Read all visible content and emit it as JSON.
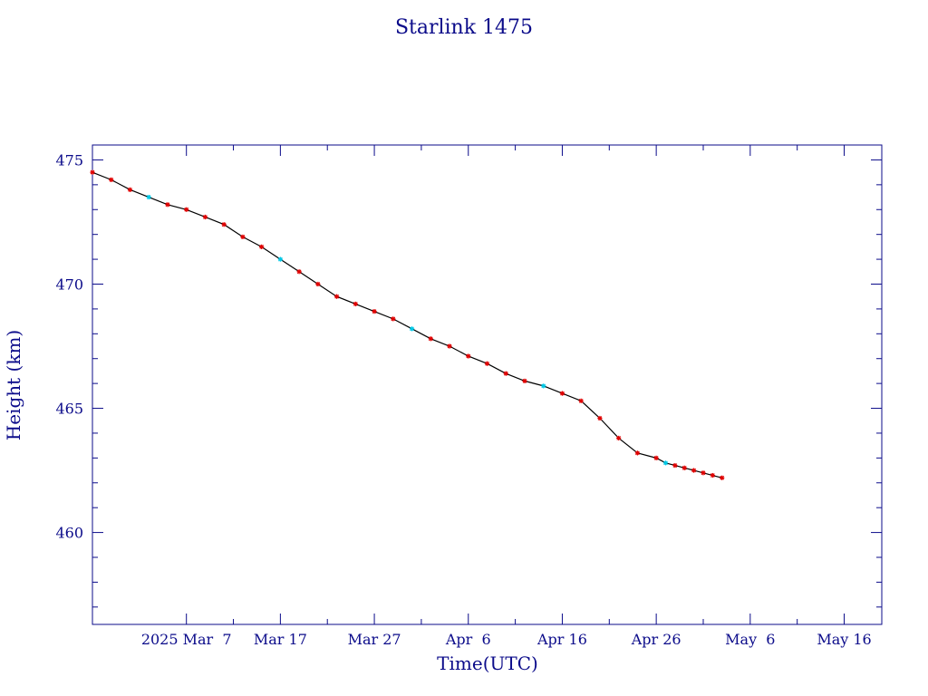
{
  "chart_data": {
    "type": "scatter",
    "title": "Starlink 1475",
    "xlabel": "Time(UTC)",
    "ylabel": "Height (km)",
    "x_tick_labels": [
      "2025 Mar  7",
      "Mar 17",
      "Mar 27",
      "Apr  6",
      "Apr 16",
      "Apr 26",
      "May  6",
      "May 16"
    ],
    "x_tick_dates": [
      "2025-03-07",
      "2025-03-17",
      "2025-03-27",
      "2025-04-06",
      "2025-04-16",
      "2025-04-26",
      "2025-05-06",
      "2025-05-16"
    ],
    "xlim": [
      "2025-02-25",
      "2025-05-20"
    ],
    "y_ticks": [
      460,
      465,
      470,
      475
    ],
    "ylim": [
      456.3,
      475.6
    ],
    "grid": false,
    "colors": {
      "axis": "#0b0b8a",
      "points": "#e00000",
      "points_alt": "#00c8e6",
      "line": "#000000"
    },
    "series": [
      {
        "x": [
          "2025-02-25",
          "2025-02-27",
          "2025-03-01",
          "2025-03-03",
          "2025-03-05",
          "2025-03-07",
          "2025-03-09",
          "2025-03-11",
          "2025-03-13",
          "2025-03-15",
          "2025-03-17",
          "2025-03-19",
          "2025-03-21",
          "2025-03-23",
          "2025-03-25",
          "2025-03-27",
          "2025-03-29",
          "2025-03-31",
          "2025-04-02",
          "2025-04-04",
          "2025-04-06",
          "2025-04-08",
          "2025-04-10",
          "2025-04-12",
          "2025-04-14",
          "2025-04-16",
          "2025-04-18",
          "2025-04-20",
          "2025-04-22",
          "2025-04-24",
          "2025-04-26",
          "2025-04-27",
          "2025-04-28",
          "2025-04-29",
          "2025-04-30",
          "2025-05-01",
          "2025-05-02",
          "2025-05-03"
        ],
        "y": [
          474.5,
          474.2,
          473.8,
          473.5,
          473.2,
          473.0,
          472.7,
          472.4,
          471.9,
          471.5,
          471.0,
          470.5,
          470.0,
          469.5,
          469.2,
          468.9,
          468.6,
          468.2,
          467.8,
          467.5,
          467.1,
          466.8,
          466.4,
          466.1,
          465.9,
          465.6,
          465.3,
          464.6,
          463.8,
          463.2,
          463.0,
          462.8,
          462.7,
          462.6,
          462.5,
          462.4,
          462.3,
          462.2
        ]
      }
    ]
  }
}
